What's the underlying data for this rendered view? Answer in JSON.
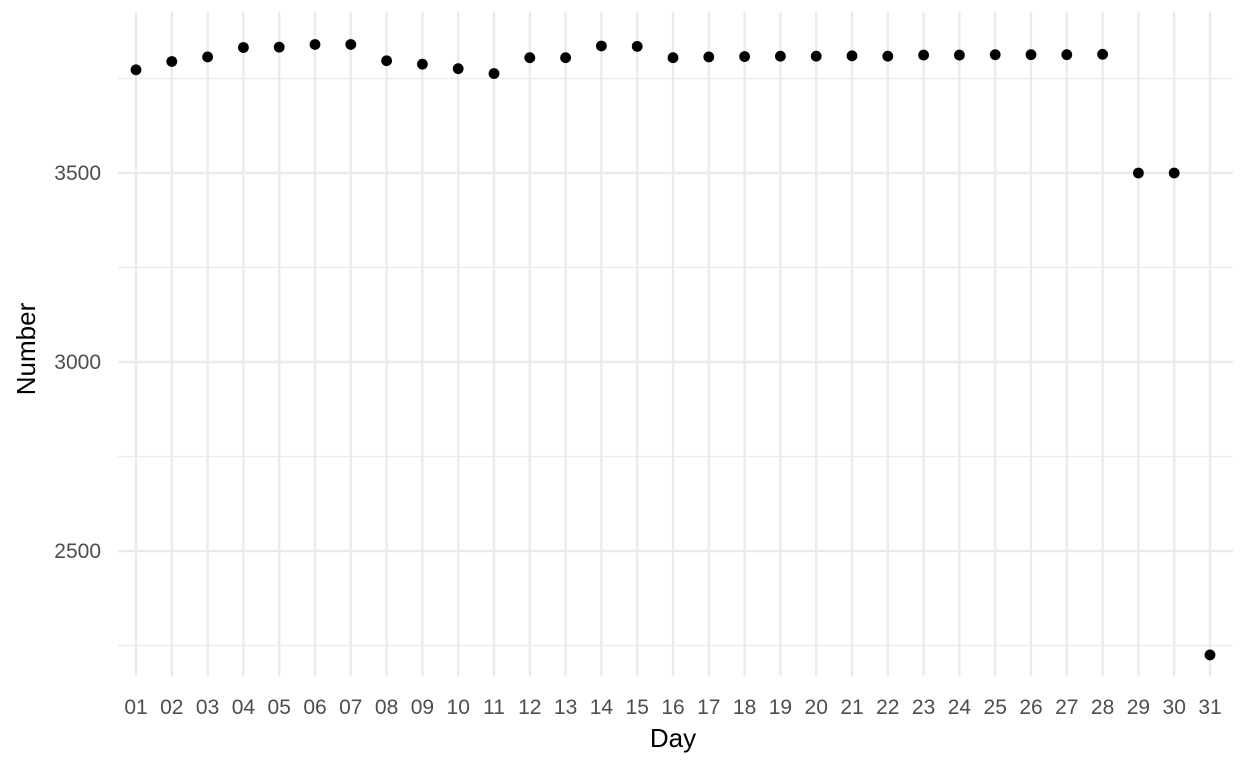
{
  "chart_data": {
    "type": "scatter",
    "title": "",
    "xlabel": "Day",
    "ylabel": "Number",
    "x": [
      "01",
      "02",
      "03",
      "04",
      "05",
      "06",
      "07",
      "08",
      "09",
      "10",
      "11",
      "12",
      "13",
      "14",
      "15",
      "16",
      "17",
      "18",
      "19",
      "20",
      "21",
      "22",
      "23",
      "24",
      "25",
      "26",
      "27",
      "28",
      "29",
      "30",
      "31"
    ],
    "y": [
      3773,
      3795,
      3807,
      3832,
      3833,
      3840,
      3840,
      3797,
      3788,
      3776,
      3763,
      3805,
      3805,
      3836,
      3835,
      3805,
      3807,
      3808,
      3809,
      3809,
      3810,
      3809,
      3812,
      3812,
      3813,
      3813,
      3813,
      3814,
      3500,
      3500,
      2225
    ],
    "y_ticks": [
      2500,
      3000,
      3500
    ],
    "y_tick_labels": [
      "2500",
      "3000",
      "3500"
    ],
    "ylim": [
      2194,
      3882
    ],
    "grid": true,
    "legend": "none",
    "point_color": "#000000",
    "grid_color": "#ebebeb"
  }
}
